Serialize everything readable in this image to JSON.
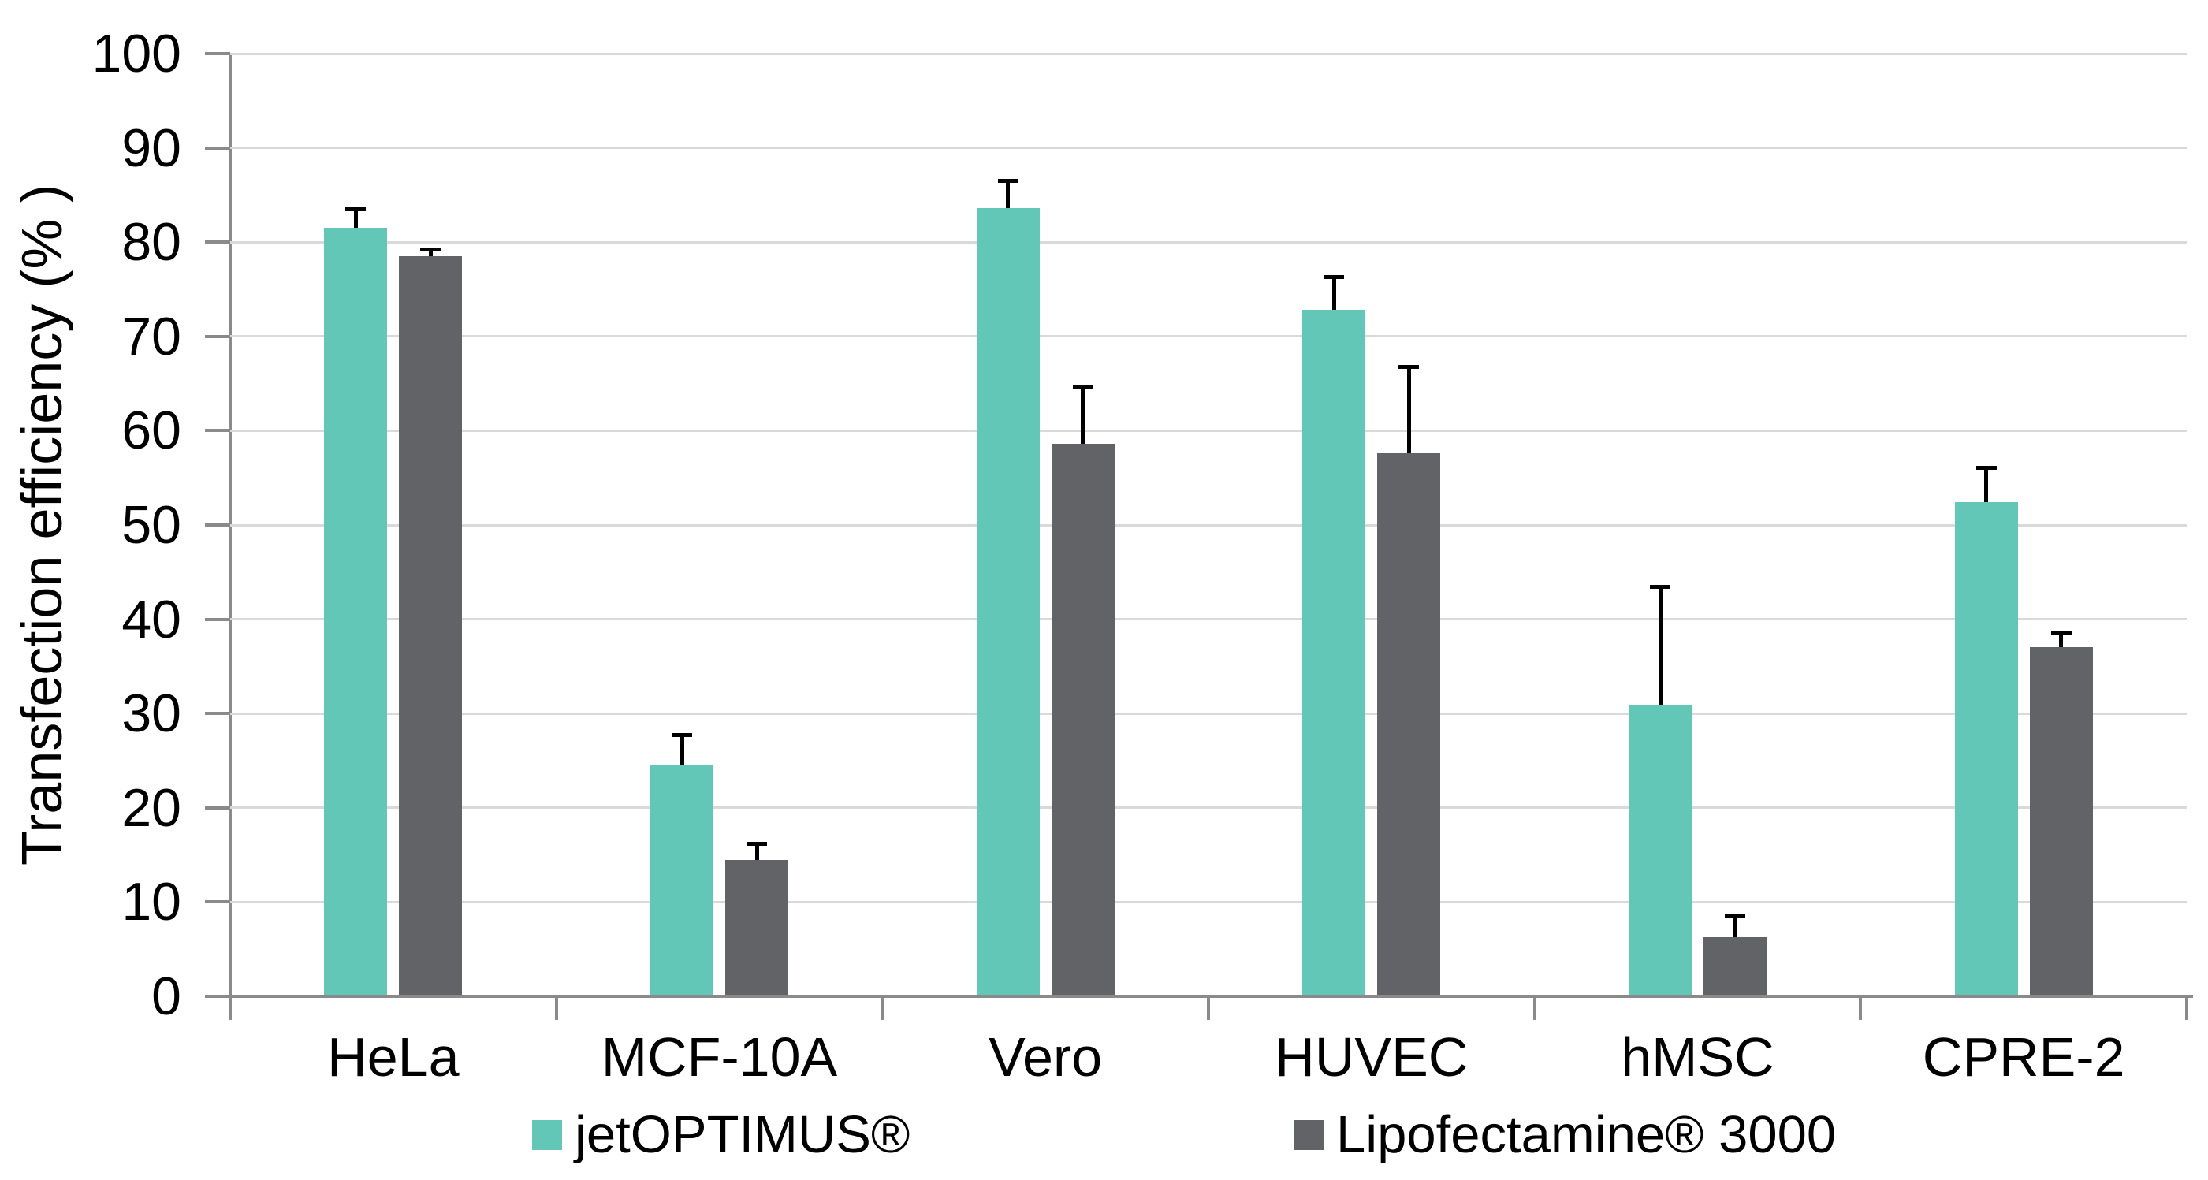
{
  "chart_data": {
    "type": "bar",
    "title": "",
    "ylabel": "Transfection efficiency (% )",
    "xlabel": "",
    "ylim": [
      0,
      100
    ],
    "yticks": [
      0,
      10,
      20,
      30,
      40,
      50,
      60,
      70,
      80,
      90,
      100
    ],
    "grid": true,
    "legend_position": "bottom",
    "categories": [
      "HeLa",
      "MCF-10A",
      "Vero",
      "HUVEC",
      "hMSC",
      "CPRE-2"
    ],
    "series": [
      {
        "name": "jetOPTIMUS®",
        "color": "#63C7B7",
        "values": [
          81.5,
          24.5,
          83.6,
          72.8,
          30.9,
          52.4
        ],
        "errors_plus": [
          2.0,
          3.2,
          2.9,
          3.5,
          12.5,
          3.7
        ]
      },
      {
        "name": "Lipofectamine® 3000",
        "color": "#626367",
        "values": [
          78.5,
          14.5,
          58.6,
          57.6,
          6.3,
          37.0
        ],
        "errors_plus": [
          0.7,
          1.7,
          6.1,
          9.2,
          2.2,
          1.6
        ]
      }
    ],
    "colors": {
      "axis": "#8A8A8A",
      "gridline": "#D9D9D9",
      "error_bar": "#000000",
      "text": "#000000"
    }
  }
}
